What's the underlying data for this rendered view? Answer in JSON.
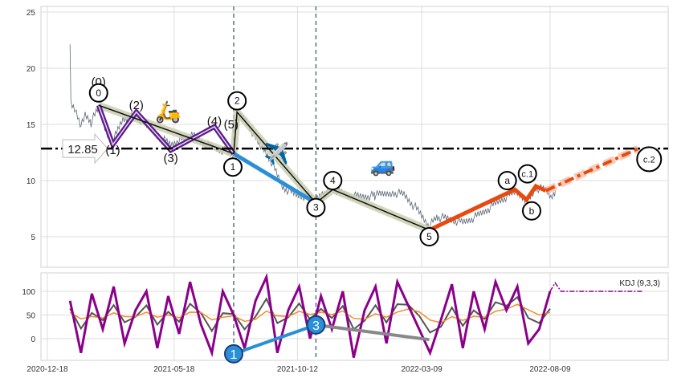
{
  "chart_data": [
    {
      "type": "line",
      "title": "",
      "x_unit": "days since 2020-12-18",
      "ylim": [
        2,
        25.5
      ],
      "yticks": [
        5,
        10,
        15,
        20,
        25
      ],
      "grid": true,
      "price": [
        [
          27,
          22.3
        ],
        [
          28,
          17
        ],
        [
          33,
          16.5
        ],
        [
          40,
          15
        ],
        [
          45,
          15.8
        ],
        [
          52,
          15.2
        ],
        [
          61,
          16.5
        ],
        [
          70,
          14.5
        ],
        [
          78,
          13.5
        ],
        [
          90,
          15.5
        ],
        [
          106,
          15.8
        ],
        [
          120,
          14.8
        ],
        [
          135,
          13.8
        ],
        [
          147,
          13.2
        ],
        [
          160,
          13.8
        ],
        [
          175,
          14
        ],
        [
          190,
          13.2
        ],
        [
          205,
          12.8
        ],
        [
          215,
          12.6
        ],
        [
          222,
          12.4
        ],
        [
          226,
          15.8
        ],
        [
          235,
          15.5
        ],
        [
          245,
          14.2
        ],
        [
          255,
          13
        ],
        [
          268,
          11.5
        ],
        [
          280,
          9.5
        ],
        [
          295,
          8.8
        ],
        [
          310,
          8.6
        ],
        [
          320,
          8.2
        ],
        [
          330,
          9
        ],
        [
          340,
          9.3
        ],
        [
          355,
          8.8
        ],
        [
          370,
          8.6
        ],
        [
          390,
          8.7
        ],
        [
          410,
          9.0
        ],
        [
          425,
          8.8
        ],
        [
          440,
          7.5
        ],
        [
          455,
          6.0
        ],
        [
          465,
          6.8
        ],
        [
          480,
          6.6
        ],
        [
          495,
          6.3
        ],
        [
          510,
          6.8
        ],
        [
          525,
          7.5
        ],
        [
          540,
          8.3
        ],
        [
          557,
          9.0
        ],
        [
          571,
          8.3
        ],
        [
          582,
          9.4
        ],
        [
          594,
          9.2
        ],
        [
          600,
          8.6
        ],
        [
          605,
          9.1
        ]
      ],
      "target_line": {
        "value": 12.85,
        "label": "12.85"
      },
      "vlines_days": [
        222,
        320
      ],
      "subwave": {
        "color": "#5b1a8c",
        "points": [
          [
            61,
            16.7
          ],
          [
            78,
            13.2
          ],
          [
            106,
            16.1
          ],
          [
            147,
            12.7
          ],
          [
            199,
            14.8
          ],
          [
            222,
            12.4
          ]
        ]
      },
      "primary_wave": {
        "color": "#111111",
        "points": [
          [
            61,
            16.7
          ],
          [
            222,
            12.4
          ],
          [
            226,
            16.1
          ],
          [
            320,
            8.0
          ],
          [
            340,
            9.2
          ],
          [
            455,
            5.6
          ]
        ]
      },
      "blue_wave": {
        "color": "#2a8fd6",
        "points": [
          [
            222,
            12.4
          ],
          [
            320,
            8.0
          ]
        ]
      },
      "abc_wave": {
        "color": "#e8490f",
        "points": [
          [
            455,
            5.6
          ],
          [
            557,
            9.2
          ],
          [
            571,
            8.3
          ],
          [
            582,
            9.5
          ],
          [
            594,
            9.1
          ]
        ]
      },
      "projection": {
        "color": "#e8490f",
        "points": [
          [
            594,
            9.1
          ],
          [
            704,
            12.85
          ]
        ]
      },
      "labels": [
        {
          "text": "(0)",
          "d": 61,
          "v": 18.8,
          "circle": false
        },
        {
          "text": "0",
          "d": 61,
          "v": 17.8,
          "circle": true
        },
        {
          "text": "(1)",
          "d": 78,
          "v": 12.7,
          "circle": false
        },
        {
          "text": "(2)",
          "d": 106,
          "v": 16.7,
          "circle": false
        },
        {
          "text": "(3)",
          "d": 147,
          "v": 12.0,
          "circle": false
        },
        {
          "text": "(4)",
          "d": 199,
          "v": 15.3,
          "circle": false
        },
        {
          "text": "(5)",
          "d": 219,
          "v": 15.0,
          "circle": false
        },
        {
          "text": "1",
          "d": 221,
          "v": 11.2,
          "circle": true
        },
        {
          "text": "2",
          "d": 226,
          "v": 17.1,
          "circle": true
        },
        {
          "text": "3",
          "d": 320,
          "v": 7.6,
          "circle": true
        },
        {
          "text": "4",
          "d": 340,
          "v": 10.0,
          "circle": true
        },
        {
          "text": "5",
          "d": 455,
          "v": 5.0,
          "circle": true
        },
        {
          "text": "a",
          "d": 548,
          "v": 10.0,
          "circle": true
        },
        {
          "text": "c.1",
          "d": 572,
          "v": 10.6,
          "circle": true
        },
        {
          "text": "b",
          "d": 577,
          "v": 7.3,
          "circle": true
        },
        {
          "text": "c.2",
          "d": 717,
          "v": 11.9,
          "circle": true
        }
      ],
      "icons": [
        {
          "name": "scooter-icon",
          "glyph": "🛵",
          "d": 144,
          "v": 15.5
        },
        {
          "name": "airplane-icon",
          "glyph": "✈️",
          "d": 273,
          "v": 11.8
        },
        {
          "name": "car-icon",
          "glyph": "🚙",
          "d": 400,
          "v": 10.8
        }
      ]
    },
    {
      "type": "line",
      "title": "KDJ (9,3,3)",
      "ylim": [
        -45,
        140
      ],
      "yticks": [
        0,
        50,
        100
      ],
      "xticks": [
        {
          "d": 0,
          "label": "2020-12-18"
        },
        {
          "d": 151,
          "label": "2021-05-18"
        },
        {
          "d": 298,
          "label": "2021-10-12"
        },
        {
          "d": 446,
          "label": "2022-03-09"
        },
        {
          "d": 599,
          "label": "2022-08-09"
        }
      ],
      "j_start_day": 27,
      "j_step_days": 13,
      "J": [
        80,
        -30,
        95,
        20,
        110,
        -10,
        60,
        100,
        -20,
        90,
        10,
        120,
        30,
        -30,
        100,
        50,
        -20,
        80,
        130,
        -30,
        60,
        110,
        0,
        90,
        20,
        100,
        -40,
        60,
        110,
        -10,
        120,
        70,
        20,
        -30,
        40,
        115,
        -20,
        100,
        20,
        120,
        60,
        110,
        -10,
        20,
        100
      ],
      "tail": [
        [
          605,
          118
        ],
        [
          612,
          100
        ],
        [
          710,
          100
        ]
      ],
      "colors": {
        "K": "#555555",
        "D": "#f28c28",
        "J": "#8b008b"
      },
      "wave_marks": [
        {
          "text": "1",
          "d": 222,
          "v": -32
        },
        {
          "text": "3",
          "d": 320,
          "v": 29
        }
      ],
      "blue_segment": [
        [
          222,
          -32
        ],
        [
          320,
          29
        ]
      ],
      "gray_segment": [
        [
          320,
          29
        ],
        [
          455,
          -2
        ]
      ]
    }
  ]
}
